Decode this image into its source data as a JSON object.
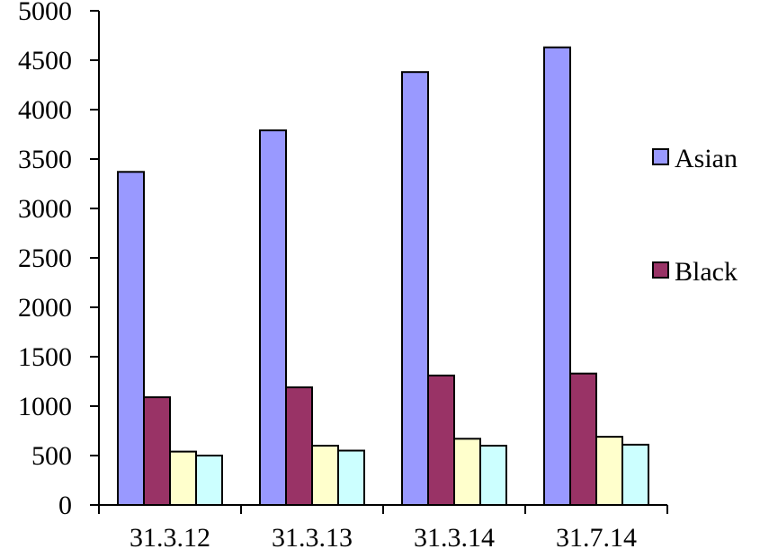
{
  "chart_data": {
    "type": "bar",
    "categories": [
      "31.3.12",
      "31.3.13",
      "31.3.14",
      "31.7.14"
    ],
    "series": [
      {
        "name": "Asian",
        "values": [
          3370,
          3790,
          4380,
          4630
        ],
        "color": "#9999ff"
      },
      {
        "name": "Black",
        "values": [
          1090,
          1190,
          1310,
          1330
        ],
        "color": "#993366"
      },
      {
        "name": "",
        "values": [
          540,
          600,
          670,
          690
        ],
        "color": "#ffffcc"
      },
      {
        "name": "",
        "values": [
          500,
          550,
          600,
          610
        ],
        "color": "#ccffff"
      }
    ],
    "ylim": [
      0,
      5000
    ],
    "yticks": [
      0,
      500,
      1000,
      1500,
      2000,
      2500,
      3000,
      3500,
      4000,
      4500,
      5000
    ],
    "grid": false,
    "legend": {
      "placement": "right",
      "entries": [
        "Asian",
        "Black"
      ]
    }
  }
}
